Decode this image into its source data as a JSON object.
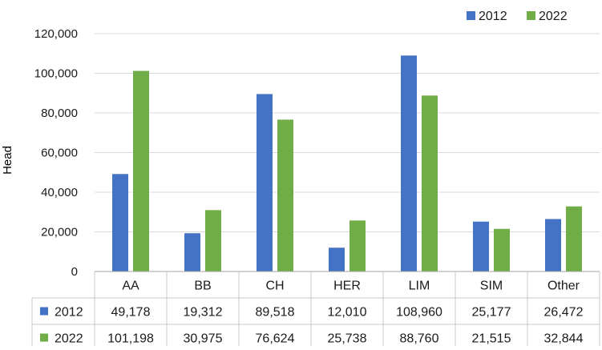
{
  "chart_data": {
    "type": "bar",
    "title": "",
    "xlabel": "",
    "ylabel": "Head",
    "ylim": [
      0,
      120000
    ],
    "yticks": [
      0,
      20000,
      40000,
      60000,
      80000,
      100000,
      120000
    ],
    "grid": true,
    "legend_position": "top-right",
    "categories": [
      "AA",
      "BB",
      "CH",
      "HER",
      "LIM",
      "SIM",
      "Other"
    ],
    "series": [
      {
        "name": "2012",
        "color": "#4472C4",
        "values": [
          49178,
          19312,
          89518,
          12010,
          108960,
          25177,
          26472
        ]
      },
      {
        "name": "2022",
        "color": "#70AD47",
        "values": [
          101198,
          30975,
          76624,
          25738,
          88760,
          21515,
          32844
        ]
      }
    ],
    "data_table": true
  }
}
